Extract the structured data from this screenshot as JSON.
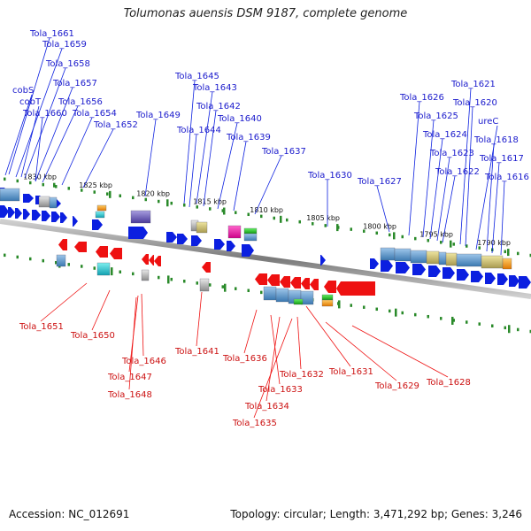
{
  "title": "Tolumonas auensis DSM 9187, complete genome",
  "footer": {
    "accession": "Accession: NC_012691",
    "info": "Topology: circular; Length: 3,471,292 bp; Genes: 3,246"
  },
  "colors": {
    "forward": "#0b1fe0",
    "reverse": "#ee1111",
    "backbone": "#888888",
    "ticks": "#2a8a2a"
  },
  "kbp_labels": [
    "1830 kbp",
    "1825 kbp",
    "1820 kbp",
    "1815 kbp",
    "1810 kbp",
    "1805 kbp",
    "1800 kbp",
    "1795 kbp",
    "1790 kbp"
  ],
  "top_labels": [
    "Tola_1661",
    "Tola_1659",
    "Tola_1658",
    "cobS",
    "Tola_1657",
    "cobT",
    "Tola_1656",
    "Tola_1660",
    "Tola_1654",
    "Tola_1652",
    "Tola_1649",
    "Tola_1645",
    "Tola_1643",
    "Tola_1642",
    "Tola_1640",
    "Tola_1644",
    "Tola_1639",
    "Tola_1637",
    "Tola_1630",
    "Tola_1627",
    "Tola_1626",
    "Tola_1625",
    "Tola_1624",
    "Tola_1623",
    "Tola_1622",
    "Tola_1621",
    "Tola_1620",
    "ureC",
    "Tola_1618",
    "Tola_1617",
    "Tola_1616"
  ],
  "bottom_labels": [
    "Tola_1651",
    "Tola_1650",
    "Tola_1646",
    "Tola_1647",
    "Tola_1648",
    "Tola_1641",
    "Tola_1636",
    "Tola_1633",
    "Tola_1634",
    "Tola_1635",
    "Tola_1632",
    "Tola_1631",
    "Tola_1629",
    "Tola_1628"
  ]
}
